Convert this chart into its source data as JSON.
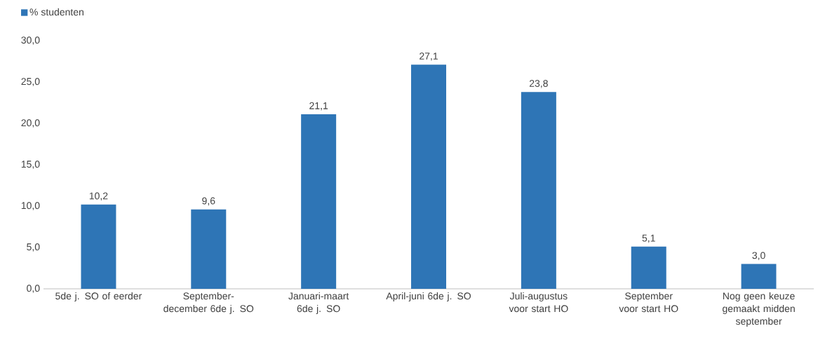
{
  "chart_data": {
    "type": "bar",
    "categories": [
      "5de j. SO of eerder",
      "September-december 6de j. SO",
      "Januari-maart 6de j. SO",
      "April-juni 6de j. SO",
      "Juli-augustus voor start HO",
      "September voor start HO",
      "Nog geen keuze gemaakt midden september"
    ],
    "series": [
      {
        "name": "% studenten",
        "color": "#2e75b6",
        "values": [
          10.2,
          9.6,
          21.1,
          27.1,
          23.8,
          5.1,
          3.0
        ],
        "value_labels": [
          "10,2",
          "9,6",
          "21,1",
          "27,1",
          "23,8",
          "5,1",
          "3,0"
        ]
      }
    ],
    "ylim": [
      0,
      30
    ],
    "yticks": [
      {
        "value": 0,
        "label": "0,0"
      },
      {
        "value": 5,
        "label": "5,0"
      },
      {
        "value": 10,
        "label": "10,0"
      },
      {
        "value": 15,
        "label": "15,0"
      },
      {
        "value": 20,
        "label": "20,0"
      },
      {
        "value": 25,
        "label": "25,0"
      },
      {
        "value": 30,
        "label": "30,0"
      }
    ],
    "grid": false,
    "legend": "top left"
  }
}
